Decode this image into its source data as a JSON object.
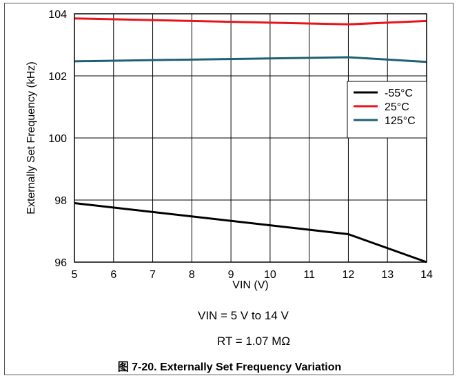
{
  "chart_data": {
    "type": "line",
    "xlabel": "VIN (V)",
    "ylabel": "Externally Set Frequency (kHz)",
    "xlim": [
      5,
      14
    ],
    "ylim": [
      96,
      104
    ],
    "x_ticks": [
      "5",
      "6",
      "7",
      "8",
      "9",
      "10",
      "11",
      "12",
      "13",
      "14"
    ],
    "y_ticks": [
      "96",
      "98",
      "100",
      "102",
      "104"
    ],
    "grid": true,
    "legend_position": "right",
    "series": [
      {
        "name": "-55°C",
        "color": "#000000",
        "x": [
          5,
          12,
          14
        ],
        "y": [
          97.9,
          96.9,
          96.0
        ]
      },
      {
        "name": "25°C",
        "color": "#e8141b",
        "x": [
          5,
          12,
          14
        ],
        "y": [
          103.85,
          103.66,
          103.77
        ]
      },
      {
        "name": "125°C",
        "color": "#1d5f73",
        "x": [
          5,
          12,
          14
        ],
        "y": [
          102.47,
          102.6,
          102.45
        ]
      }
    ]
  },
  "conditions": {
    "vin_range": "VIN = 5 V to 14 V",
    "rt_value": "RT = 1.07 MΩ"
  },
  "caption": "图 7-20. Externally Set Frequency Variation"
}
